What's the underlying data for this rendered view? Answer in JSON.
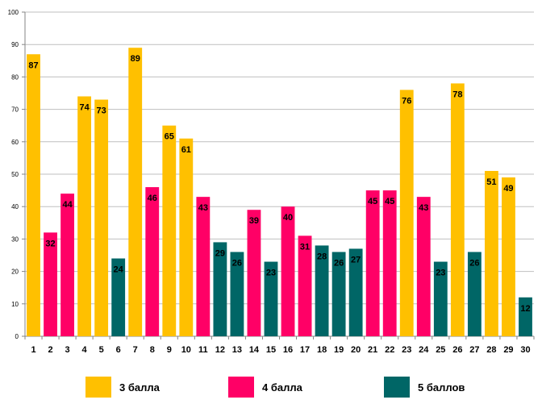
{
  "chart_data": {
    "type": "bar",
    "categories": [
      "1",
      "2",
      "3",
      "4",
      "5",
      "6",
      "7",
      "8",
      "9",
      "10",
      "11",
      "12",
      "13",
      "14",
      "15",
      "16",
      "17",
      "18",
      "19",
      "20",
      "21",
      "22",
      "23",
      "24",
      "25",
      "26",
      "27",
      "28",
      "29",
      "30"
    ],
    "values": [
      87,
      32,
      44,
      74,
      73,
      24,
      89,
      46,
      65,
      61,
      43,
      29,
      26,
      39,
      23,
      40,
      31,
      28,
      26,
      27,
      45,
      45,
      76,
      43,
      23,
      78,
      26,
      51,
      49,
      12
    ],
    "groups": [
      "3",
      "4",
      "4",
      "3",
      "3",
      "5",
      "3",
      "4",
      "3",
      "3",
      "4",
      "5",
      "5",
      "4",
      "5",
      "4",
      "4",
      "5",
      "5",
      "5",
      "4",
      "4",
      "3",
      "4",
      "5",
      "3",
      "5",
      "3",
      "3",
      "5"
    ],
    "yticks": [
      "0",
      "10",
      "20",
      "30",
      "40",
      "50",
      "60",
      "70",
      "80",
      "90",
      "100"
    ],
    "ylim": [
      0,
      100
    ],
    "title": "",
    "xlabel": "",
    "ylabel": "",
    "grid": true,
    "legend": {
      "position": "bottom",
      "entries": [
        {
          "key": "3",
          "label": "3 балла",
          "color": "#FFC000"
        },
        {
          "key": "4",
          "label": "4 балла",
          "color": "#FF0066"
        },
        {
          "key": "5",
          "label": "5 баллов",
          "color": "#006666"
        }
      ]
    }
  }
}
